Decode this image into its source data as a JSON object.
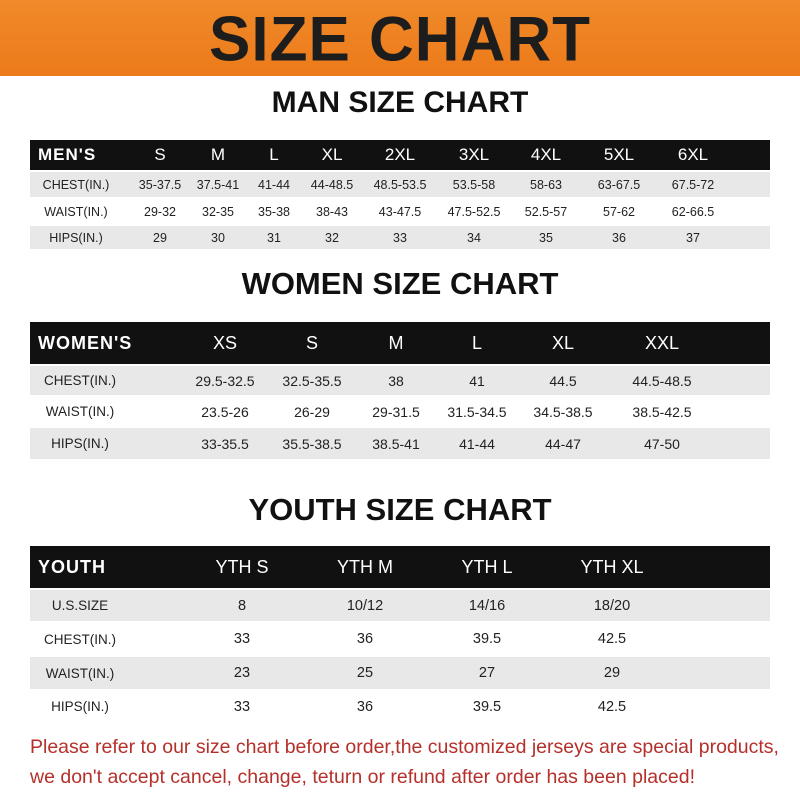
{
  "banner_title": "SIZE CHART",
  "men": {
    "title": "MAN SIZE CHART",
    "header": [
      "MEN'S",
      "S",
      "M",
      "L",
      "XL",
      "2XL",
      "3XL",
      "4XL",
      "5XL",
      "6XL"
    ],
    "rows": [
      [
        "CHEST(IN.)",
        "35-37.5",
        "37.5-41",
        "41-44",
        "44-48.5",
        "48.5-53.5",
        "53.5-58",
        "58-63",
        "63-67.5",
        "67.5-72"
      ],
      [
        "WAIST(IN.)",
        "29-32",
        "32-35",
        "35-38",
        "38-43",
        "43-47.5",
        "47.5-52.5",
        "52.5-57",
        "57-62",
        "62-66.5"
      ],
      [
        "HIPS(IN.)",
        "29",
        "30",
        "31",
        "32",
        "33",
        "34",
        "35",
        "36",
        "37"
      ]
    ]
  },
  "women": {
    "title": "WOMEN SIZE CHART",
    "header": [
      "WOMEN'S",
      "XS",
      "S",
      "M",
      "L",
      "XL",
      "XXL"
    ],
    "rows": [
      [
        "CHEST(IN.)",
        "29.5-32.5",
        "32.5-35.5",
        "38",
        "41",
        "44.5",
        "44.5-48.5"
      ],
      [
        "WAIST(IN.)",
        "23.5-26",
        "26-29",
        "29-31.5",
        "31.5-34.5",
        "34.5-38.5",
        "38.5-42.5"
      ],
      [
        "HIPS(IN.)",
        "33-35.5",
        "35.5-38.5",
        "38.5-41",
        "41-44",
        "44-47",
        "47-50"
      ]
    ]
  },
  "youth": {
    "title": "YOUTH SIZE CHART",
    "header": [
      "YOUTH",
      "YTH S",
      "YTH M",
      "YTH L",
      "YTH XL"
    ],
    "rows": [
      [
        "U.S.SIZE",
        "8",
        "10/12",
        "14/16",
        "18/20"
      ],
      [
        "CHEST(IN.)",
        "33",
        "36",
        "39.5",
        "42.5"
      ],
      [
        "WAIST(IN.)",
        "23",
        "25",
        "27",
        "29"
      ],
      [
        "HIPS(IN.)",
        "33",
        "36",
        "39.5",
        "42.5"
      ]
    ]
  },
  "notice": {
    "line1": "Please refer to our size chart before order,the customized jerseys are special products,",
    "line2": "we don't accept cancel, change, teturn or refund after order has been placed!"
  },
  "colors": {
    "banner": "#ee8024",
    "header_row": "#111111",
    "stripe": "#e8e8e8",
    "notice": "#b5302a"
  }
}
